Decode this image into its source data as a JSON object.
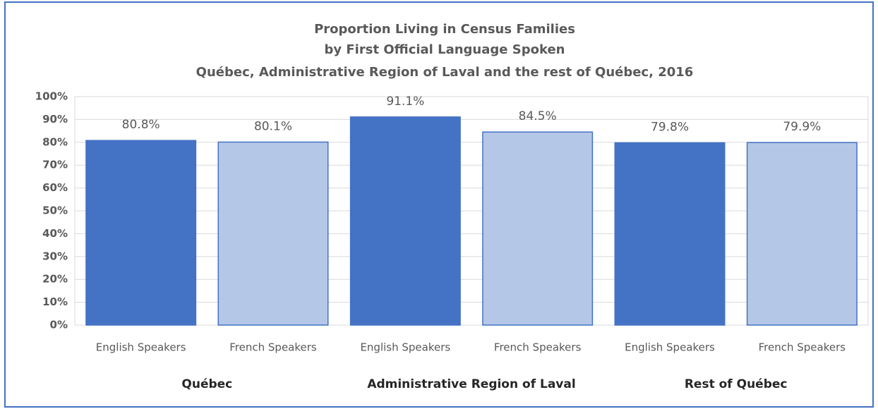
{
  "chart_data": {
    "type": "bar",
    "title": [
      "Proportion Living in Census Families",
      "by First Official Language Spoken",
      "Québec, Administrative Region of Laval and the rest of Québec, 2016"
    ],
    "categories": [
      "English Speakers",
      "French Speakers",
      "English Speakers",
      "French Speakers",
      "English Speakers",
      "French Speakers"
    ],
    "groups": [
      "Québec",
      "Administrative Region of Laval",
      "Rest of Québec"
    ],
    "values": [
      80.8,
      80.1,
      91.1,
      84.5,
      79.8,
      79.9
    ],
    "value_labels": [
      "80.8%",
      "80.1%",
      "91.1%",
      "84.5%",
      "79.8%",
      "79.9%"
    ],
    "colors": [
      "#4472c4",
      "#b4c7e7",
      "#4472c4",
      "#b4c7e7",
      "#4472c4",
      "#b4c7e7"
    ],
    "ylim": [
      0,
      100
    ],
    "yticks": [
      {
        "value": 0,
        "label": "0%"
      },
      {
        "value": 10,
        "label": "10%"
      },
      {
        "value": 20,
        "label": "20%"
      },
      {
        "value": 30,
        "label": "30%"
      },
      {
        "value": 40,
        "label": "40%"
      },
      {
        "value": 50,
        "label": "50%"
      },
      {
        "value": 60,
        "label": "60%"
      },
      {
        "value": 70,
        "label": "70%"
      },
      {
        "value": 80,
        "label": "80%"
      },
      {
        "value": 90,
        "label": "90%"
      },
      {
        "value": 100,
        "label": "100%"
      }
    ],
    "grid": true
  }
}
